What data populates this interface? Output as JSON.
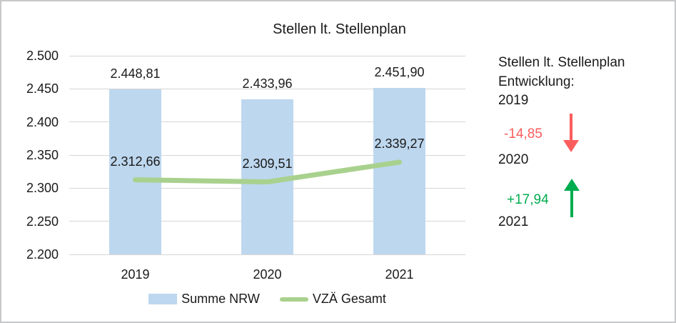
{
  "title": "Stellen lt. Stellenplan",
  "chart_data": {
    "type": "bar",
    "title": "Stellen lt. Stellenplan",
    "categories": [
      "2019",
      "2020",
      "2021"
    ],
    "series": [
      {
        "name": "Summe NRW",
        "type": "bar",
        "values": [
          2448.81,
          2433.96,
          2451.9
        ],
        "labels": [
          "2.448,81",
          "2.433,96",
          "2.451,90"
        ],
        "color": "#BDD7EE"
      },
      {
        "name": "VZÄ Gesamt",
        "type": "line",
        "values": [
          2312.66,
          2309.51,
          2339.27
        ],
        "labels": [
          "2.312,66",
          "2.309,51",
          "2.339,27"
        ],
        "color": "#A9D18E"
      }
    ],
    "y_axis": {
      "min": 2200,
      "max": 2500,
      "ticks": [
        2500,
        2450,
        2400,
        2350,
        2300,
        2250,
        2200
      ],
      "tick_labels": [
        "2.500",
        "2.450",
        "2.400",
        "2.350",
        "2.300",
        "2.250",
        "2.200"
      ]
    },
    "grid": true,
    "gridline_color": "#d6d6d6",
    "legend_position": "bottom"
  },
  "side_panel": {
    "heading_line1": "Stellen lt. Stellenplan",
    "heading_line2": "Entwicklung:",
    "year_start": "2019",
    "delta_negative": "-14,85",
    "year_mid": "2020",
    "delta_positive": "+17,94",
    "year_end": "2021",
    "negative_color": "#FB5D5D",
    "positive_color": "#00AC50",
    "icons": {
      "down": "arrow-down-icon",
      "up": "arrow-up-icon"
    }
  }
}
